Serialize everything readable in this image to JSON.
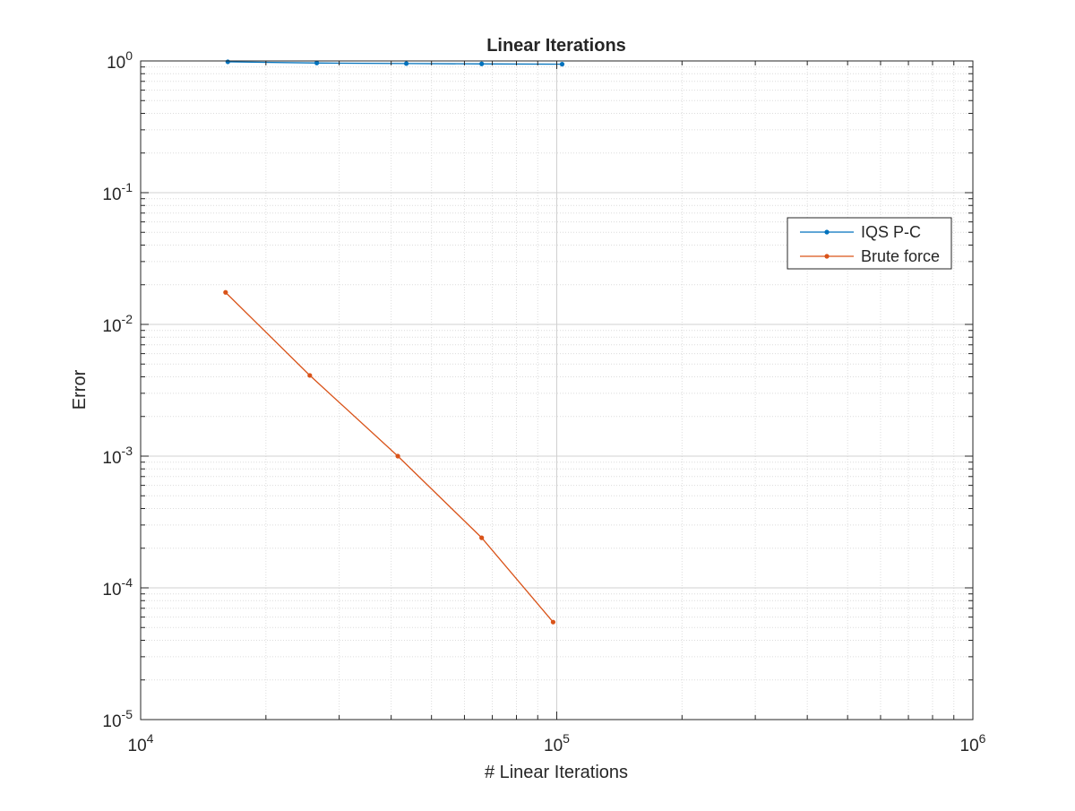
{
  "chart_data": {
    "type": "line",
    "title": "Linear Iterations",
    "xlabel": "# Linear Iterations",
    "ylabel": "Error",
    "xscale": "log",
    "yscale": "log",
    "xlim": [
      10000,
      1000000
    ],
    "ylim": [
      1e-05,
      1
    ],
    "x_ticks": [
      {
        "value": 10000,
        "base": "10",
        "exp": "4"
      },
      {
        "value": 100000,
        "base": "10",
        "exp": "5"
      },
      {
        "value": 1000000,
        "base": "10",
        "exp": "6"
      }
    ],
    "y_ticks": [
      {
        "value": 1,
        "base": "10",
        "exp": "0"
      },
      {
        "value": 0.1,
        "base": "10",
        "exp": "-1"
      },
      {
        "value": 0.01,
        "base": "10",
        "exp": "-2"
      },
      {
        "value": 0.001,
        "base": "10",
        "exp": "-3"
      },
      {
        "value": 0.0001,
        "base": "10",
        "exp": "-4"
      },
      {
        "value": 1e-05,
        "base": "10",
        "exp": "-5"
      }
    ],
    "grid": true,
    "minor_grid": true,
    "legend_position": "top-right",
    "series": [
      {
        "name": "IQS P-C",
        "color": "#0072BD",
        "x": [
          16200,
          26500,
          43500,
          66000,
          103000
        ],
        "y": [
          0.985,
          0.965,
          0.955,
          0.95,
          0.945
        ]
      },
      {
        "name": "Brute force",
        "color": "#D95319",
        "x": [
          16000,
          25500,
          41500,
          66000,
          98000
        ],
        "y": [
          0.0175,
          0.0041,
          0.001,
          0.00024,
          5.5e-05
        ]
      }
    ]
  }
}
